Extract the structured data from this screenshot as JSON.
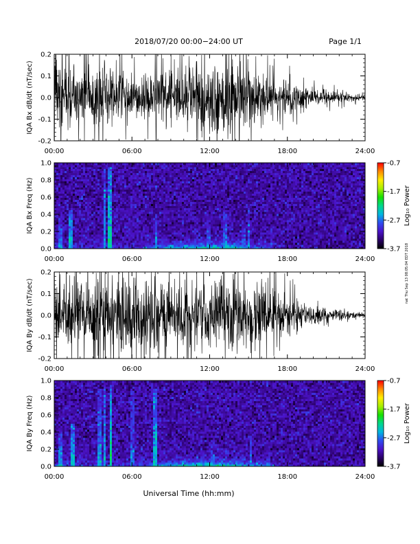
{
  "header": {
    "title": "2018/07/20  00:00−24:00 UT",
    "page": "Page 1/1"
  },
  "footer": {
    "xlabel": "Universal Time (hh:mm)",
    "side_note": "nat Thu Sep 13 08:05:04 EDT 2018"
  },
  "colorbar": {
    "label": "Log₁₀ Power",
    "ticks": [
      "-0.7",
      "-1.7",
      "-2.7",
      "-3.7"
    ],
    "range": [
      -3.7,
      -0.7
    ],
    "colors": [
      "#000000",
      "#2a0066",
      "#4b13c8",
      "#2f4cf0",
      "#00b6e0",
      "#00d88a",
      "#18e000",
      "#a8ef00",
      "#ffee00",
      "#ff8a00",
      "#ff0000"
    ]
  },
  "x_tick_labels": [
    "00:00",
    "06:00",
    "12:00",
    "18:00",
    "24:00"
  ],
  "chart_data": [
    {
      "type": "line",
      "ylabel": "IQA Bx dB/dt (nT/sec)",
      "xlim": [
        0,
        24
      ],
      "ylim": [
        -0.2,
        0.2
      ],
      "y_ticks": [
        "-0.2",
        "-0.1",
        "0.0",
        "0.1",
        "0.2"
      ],
      "color": "#000000",
      "x_unit": "hours UT",
      "envelope": {
        "x": [
          0,
          1,
          2,
          3,
          4,
          5,
          6,
          7,
          8,
          9,
          10,
          11,
          12,
          13,
          14,
          15,
          16,
          17,
          18,
          19,
          20,
          21,
          22,
          23,
          24
        ],
        "y_amplitude": [
          0.2,
          0.2,
          0.13,
          0.15,
          0.2,
          0.15,
          0.11,
          0.12,
          0.18,
          0.14,
          0.16,
          0.2,
          0.2,
          0.2,
          0.2,
          0.15,
          0.12,
          0.1,
          0.09,
          0.07,
          0.05,
          0.04,
          0.03,
          0.02,
          0.015
        ]
      }
    },
    {
      "type": "heatmap",
      "ylabel": "IQA Bx Freq (Hz)",
      "xlim": [
        0,
        24
      ],
      "ylim": [
        0,
        1.0
      ],
      "y_ticks": [
        "0.0",
        "0.2",
        "0.4",
        "0.6",
        "0.8",
        "1.0"
      ],
      "zlabel": "Log₁₀ Power",
      "zlim": [
        -3.7,
        -0.7
      ],
      "background_log_power": -3.3,
      "low_freq_enhancement": {
        "x": [
          0,
          2,
          4,
          6,
          8,
          9,
          10,
          11,
          12,
          13,
          14,
          15,
          16,
          17,
          18,
          20,
          22,
          24
        ],
        "log_power": [
          -2.8,
          -2.9,
          -2.9,
          -3.0,
          -2.6,
          -2.4,
          -2.3,
          -2.2,
          -2.2,
          -2.2,
          -2.4,
          -2.6,
          -2.7,
          -3.0,
          -3.2,
          -3.3,
          -3.4,
          -3.4
        ]
      },
      "bursts": [
        {
          "x": 0.5,
          "max_freq": 0.35,
          "log_power": -2.6
        },
        {
          "x": 1.3,
          "max_freq": 0.45,
          "log_power": -2.4
        },
        {
          "x": 3.9,
          "max_freq": 0.95,
          "log_power": -2.5
        },
        {
          "x": 4.3,
          "max_freq": 0.95,
          "log_power": -2.3
        },
        {
          "x": 7.9,
          "max_freq": 0.4,
          "log_power": -2.5
        },
        {
          "x": 11.9,
          "max_freq": 0.35,
          "log_power": -2.7
        },
        {
          "x": 13.2,
          "max_freq": 0.45,
          "log_power": -2.6
        },
        {
          "x": 14.6,
          "max_freq": 0.3,
          "log_power": -2.7
        },
        {
          "x": 15.0,
          "max_freq": 0.5,
          "log_power": -2.6
        },
        {
          "x": 16.8,
          "max_freq": 0.15,
          "log_power": -2.8
        }
      ]
    },
    {
      "type": "line",
      "ylabel": "IQA By dB/dt (nT/sec)",
      "xlim": [
        0,
        24
      ],
      "ylim": [
        -0.2,
        0.2
      ],
      "y_ticks": [
        "-0.2",
        "-0.1",
        "0.0",
        "0.1",
        "0.2"
      ],
      "color": "#000000",
      "x_unit": "hours UT",
      "envelope": {
        "x": [
          0,
          1,
          2,
          3,
          4,
          5,
          6,
          7,
          8,
          9,
          10,
          11,
          12,
          13,
          14,
          15,
          16,
          17,
          18,
          19,
          20,
          21,
          22,
          23,
          24
        ],
        "y_amplitude": [
          0.17,
          0.2,
          0.2,
          0.2,
          0.2,
          0.2,
          0.2,
          0.2,
          0.2,
          0.17,
          0.2,
          0.2,
          0.2,
          0.2,
          0.2,
          0.2,
          0.18,
          0.15,
          0.11,
          0.08,
          0.06,
          0.04,
          0.03,
          0.02,
          0.015
        ]
      }
    },
    {
      "type": "heatmap",
      "ylabel": "IQA By Freq (Hz)",
      "xlim": [
        0,
        24
      ],
      "ylim": [
        0,
        1.0
      ],
      "y_ticks": [
        "0.0",
        "0.2",
        "0.4",
        "0.6",
        "0.8",
        "1.0"
      ],
      "zlabel": "Log₁₀ Power",
      "zlim": [
        -3.7,
        -0.7
      ],
      "background_log_power": -3.3,
      "low_freq_enhancement": {
        "x": [
          0,
          2,
          4,
          6,
          8,
          9,
          10,
          11,
          12,
          13,
          14,
          15,
          16,
          17,
          18,
          20,
          22,
          24
        ],
        "log_power": [
          -2.6,
          -2.8,
          -2.8,
          -2.9,
          -2.5,
          -2.3,
          -2.2,
          -2.1,
          -2.1,
          -2.1,
          -2.3,
          -2.5,
          -2.6,
          -2.9,
          -3.1,
          -3.2,
          -3.3,
          -3.4
        ]
      },
      "bursts": [
        {
          "x": 0.5,
          "max_freq": 0.4,
          "log_power": -2.5
        },
        {
          "x": 1.4,
          "max_freq": 0.5,
          "log_power": -2.4
        },
        {
          "x": 3.5,
          "max_freq": 0.9,
          "log_power": -2.6
        },
        {
          "x": 3.9,
          "max_freq": 0.95,
          "log_power": -2.5
        },
        {
          "x": 4.4,
          "max_freq": 0.95,
          "log_power": -2.2
        },
        {
          "x": 6.0,
          "max_freq": 0.95,
          "log_power": -2.7
        },
        {
          "x": 7.8,
          "max_freq": 0.9,
          "log_power": -2.4
        },
        {
          "x": 12.2,
          "max_freq": 0.3,
          "log_power": -2.7
        },
        {
          "x": 15.2,
          "max_freq": 0.4,
          "log_power": -2.6
        },
        {
          "x": 16.5,
          "max_freq": 0.2,
          "log_power": -2.8
        }
      ]
    }
  ]
}
